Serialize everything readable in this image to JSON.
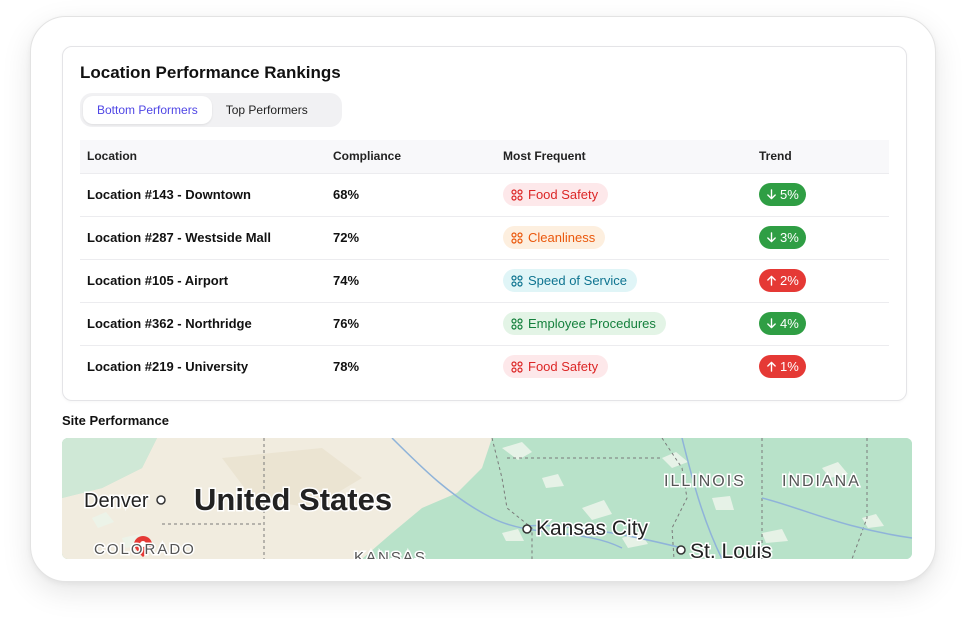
{
  "card": {
    "title": "Location Performance Rankings",
    "tabs": [
      {
        "label": "Bottom Performers",
        "active": true
      },
      {
        "label": "Top Performers",
        "active": false
      }
    ],
    "columns": [
      "Location",
      "Compliance",
      "Most Frequent",
      "Trend"
    ],
    "rows": [
      {
        "location": "Location #143 - Downtown",
        "compliance": "68%",
        "frequent": "Food Safety",
        "frequent_color": "red",
        "trend_dir": "down",
        "trend": "5%"
      },
      {
        "location": "Location #287 - Westside Mall",
        "compliance": "72%",
        "frequent": "Cleanliness",
        "frequent_color": "orange",
        "trend_dir": "down",
        "trend": "3%"
      },
      {
        "location": "Location #105 - Airport",
        "compliance": "74%",
        "frequent": "Speed of Service",
        "frequent_color": "cyan",
        "trend_dir": "up",
        "trend": "2%"
      },
      {
        "location": "Location #362 - Northridge",
        "compliance": "76%",
        "frequent": "Employee Procedures",
        "frequent_color": "green",
        "trend_dir": "down",
        "trend": "4%"
      },
      {
        "location": "Location #219 - University",
        "compliance": "78%",
        "frequent": "Food Safety",
        "frequent_color": "red",
        "trend_dir": "up",
        "trend": "1%"
      }
    ]
  },
  "site_performance": {
    "label": "Site Performance",
    "map_labels": {
      "country": "United States",
      "denver": "Denver",
      "colorado": "COLORADO",
      "kansas": "KANSAS",
      "kansas_city": "Kansas City",
      "st_louis": "St. Louis",
      "illinois": "ILLINOIS",
      "indiana": "INDIANA"
    }
  },
  "colors": {
    "accent": "#4f46e5",
    "trend_down": "#2f9e44",
    "trend_up": "#e53935",
    "map_water_green": "#b8e2c9",
    "map_land": "#f1ecdf"
  },
  "icons": {
    "category": "apps-grid-icon",
    "trend_down": "arrow-down-icon",
    "trend_up": "arrow-up-icon",
    "map_pin": "map-pin-icon"
  }
}
